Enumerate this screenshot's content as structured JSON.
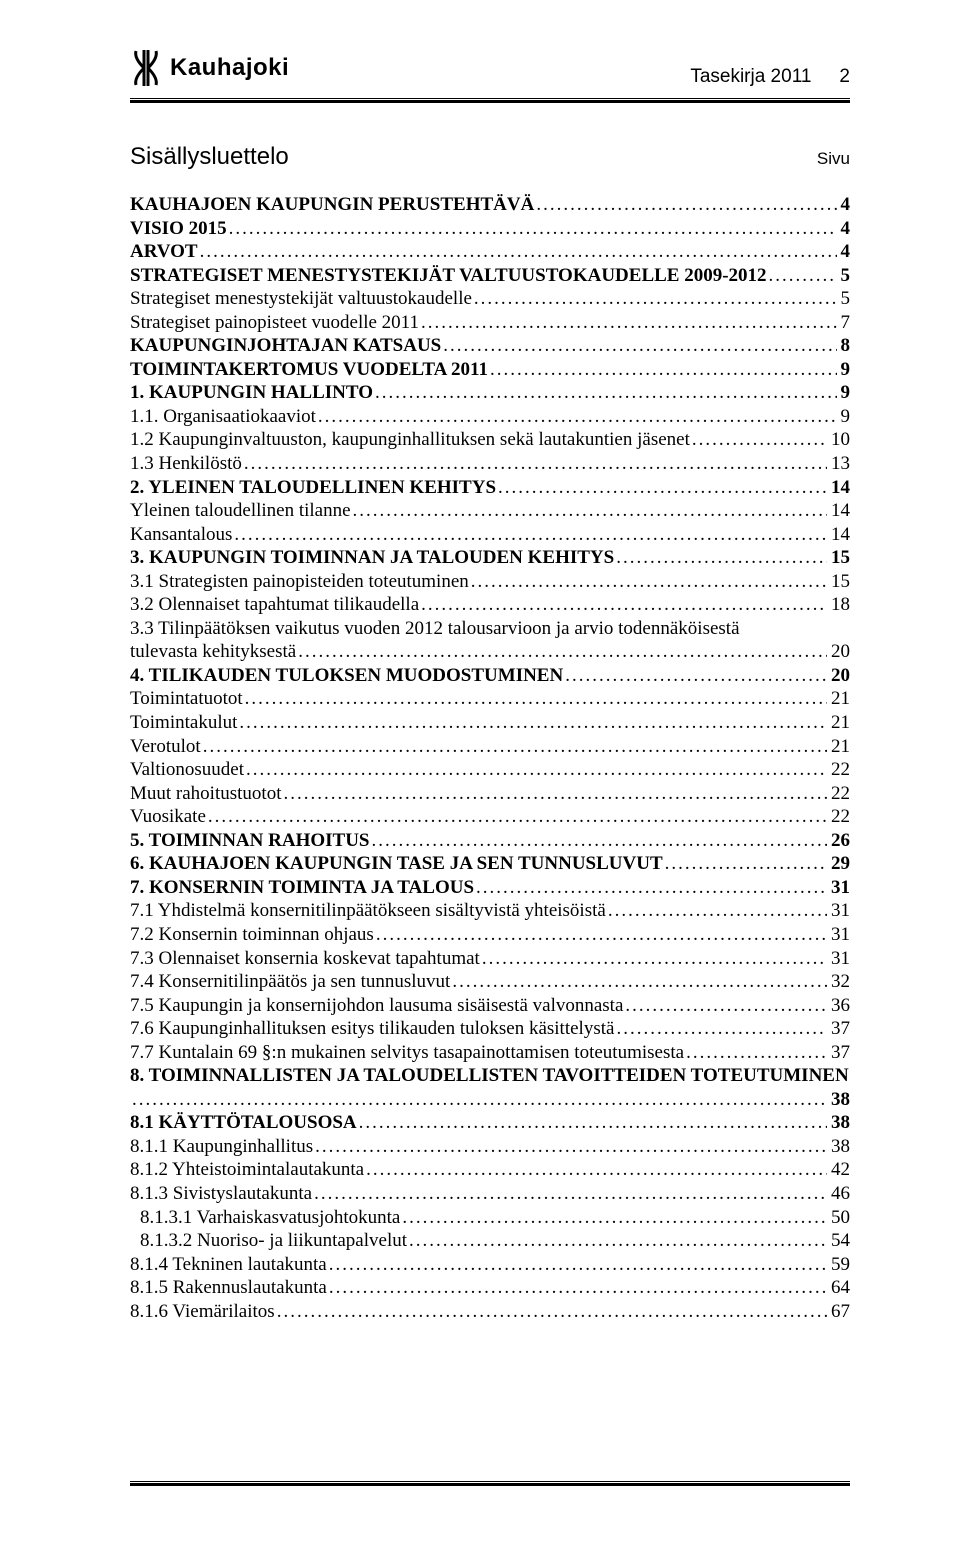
{
  "header": {
    "logo_text": "Kauhajoki",
    "doc_title": "Tasekirja 2011",
    "page_no": "2"
  },
  "toc": {
    "title": "Sisällysluettelo",
    "page_label": "Sivu",
    "entries": [
      {
        "label": "KAUHAJOEN KAUPUNGIN PERUSTEHTÄVÄ",
        "page": "4",
        "bold": true,
        "indent": 0
      },
      {
        "label": "VISIO 2015",
        "page": "4",
        "bold": true,
        "indent": 0
      },
      {
        "label": "ARVOT",
        "page": "4",
        "bold": true,
        "indent": 0
      },
      {
        "label": "STRATEGISET MENESTYSTEKIJÄT VALTUUSTOKAUDELLE 2009-2012",
        "page": "5",
        "bold": true,
        "indent": 0
      },
      {
        "label": "Strategiset menestystekijät valtuustokaudelle",
        "page": "5",
        "bold": false,
        "indent": 0
      },
      {
        "label": "Strategiset painopisteet vuodelle 2011",
        "page": "7",
        "bold": false,
        "indent": 0
      },
      {
        "label": "KAUPUNGINJOHTAJAN KATSAUS",
        "page": "8",
        "bold": true,
        "indent": 0
      },
      {
        "label": "TOIMINTAKERTOMUS VUODELTA 2011",
        "page": "9",
        "bold": true,
        "indent": 0
      },
      {
        "label": "1. KAUPUNGIN HALLINTO",
        "page": "9",
        "bold": true,
        "indent": 0
      },
      {
        "label": "1.1. Organisaatiokaaviot",
        "page": "9",
        "bold": false,
        "indent": 0
      },
      {
        "label": "1.2 Kaupunginvaltuuston, kaupunginhallituksen sekä lautakuntien jäsenet",
        "page": "10",
        "bold": false,
        "indent": 0
      },
      {
        "label": "1.3 Henkilöstö",
        "page": "13",
        "bold": false,
        "indent": 0
      },
      {
        "label": "2. YLEINEN TALOUDELLINEN KEHITYS",
        "page": "14",
        "bold": true,
        "indent": 0
      },
      {
        "label": "Yleinen taloudellinen tilanne",
        "page": "14",
        "bold": false,
        "indent": 0
      },
      {
        "label": "Kansantalous",
        "page": "14",
        "bold": false,
        "indent": 0
      },
      {
        "label": "3. KAUPUNGIN TOIMINNAN JA TALOUDEN KEHITYS",
        "page": "15",
        "bold": true,
        "indent": 0
      },
      {
        "label": "3.1 Strategisten painopisteiden toteutuminen",
        "page": "15",
        "bold": false,
        "indent": 0
      },
      {
        "label": "3.2 Olennaiset tapahtumat tilikaudella",
        "page": "18",
        "bold": false,
        "indent": 0
      },
      {
        "label": "3.3 Tilinpäätöksen vaikutus vuoden 2012 talousarvioon ja arvio todennäköisestä tulevasta kehityksestä",
        "page": "20",
        "bold": false,
        "indent": 0,
        "wrap": true
      },
      {
        "label": "4. TILIKAUDEN TULOKSEN MUODOSTUMINEN",
        "page": "20",
        "bold": true,
        "indent": 0
      },
      {
        "label": "Toimintatuotot",
        "page": "21",
        "bold": false,
        "indent": 0
      },
      {
        "label": "Toimintakulut",
        "page": "21",
        "bold": false,
        "indent": 0
      },
      {
        "label": "Verotulot",
        "page": "21",
        "bold": false,
        "indent": 0
      },
      {
        "label": "Valtionosuudet",
        "page": "22",
        "bold": false,
        "indent": 0
      },
      {
        "label": "Muut rahoitustuotot",
        "page": "22",
        "bold": false,
        "indent": 0
      },
      {
        "label": "Vuosikate",
        "page": "22",
        "bold": false,
        "indent": 0
      },
      {
        "label": "5. TOIMINNAN RAHOITUS",
        "page": "26",
        "bold": true,
        "indent": 0
      },
      {
        "label": "6. KAUHAJOEN KAUPUNGIN TASE JA SEN TUNNUSLUVUT",
        "page": "29",
        "bold": true,
        "indent": 0
      },
      {
        "label": "7. KONSERNIN TOIMINTA JA TALOUS",
        "page": "31",
        "bold": true,
        "indent": 0
      },
      {
        "label": "7.1 Yhdistelmä konsernitilinpäätökseen sisältyvistä yhteisöistä",
        "page": "31",
        "bold": false,
        "indent": 0
      },
      {
        "label": "7.2 Konsernin toiminnan ohjaus",
        "page": "31",
        "bold": false,
        "indent": 0
      },
      {
        "label": "7.3 Olennaiset konsernia koskevat tapahtumat",
        "page": "31",
        "bold": false,
        "indent": 0
      },
      {
        "label": "7.4 Konsernitilinpäätös ja sen tunnusluvut",
        "page": "32",
        "bold": false,
        "indent": 0
      },
      {
        "label": "7.5 Kaupungin ja konsernijohdon lausuma sisäisestä valvonnasta",
        "page": "36",
        "bold": false,
        "indent": 0
      },
      {
        "label": "7.6 Kaupunginhallituksen esitys tilikauden tuloksen käsittelystä",
        "page": "37",
        "bold": false,
        "indent": 0
      },
      {
        "label": "7.7 Kuntalain 69 §:n mukainen selvitys tasapainottamisen toteutumisesta",
        "page": "37",
        "bold": false,
        "indent": 0
      },
      {
        "label": "8. TOIMINNALLISTEN JA TALOUDELLISTEN TAVOITTEIDEN TOTEUTUMINEN",
        "page": "38",
        "bold": true,
        "indent": 0,
        "wrap": true
      },
      {
        "label": "8.1 KÄYTTÖTALOUSOSA",
        "page": "38",
        "bold": true,
        "indent": 0
      },
      {
        "label": "8.1.1 Kaupunginhallitus",
        "page": "38",
        "bold": false,
        "indent": 0
      },
      {
        "label": "8.1.2 Yhteistoimintalautakunta",
        "page": "42",
        "bold": false,
        "indent": 0
      },
      {
        "label": "8.1.3 Sivistyslautakunta",
        "page": "46",
        "bold": false,
        "indent": 0
      },
      {
        "label": "8.1.3.1 Varhaiskasvatusjohtokunta",
        "page": "50",
        "bold": false,
        "indent": 1
      },
      {
        "label": "8.1.3.2 Nuoriso- ja liikuntapalvelut",
        "page": "54",
        "bold": false,
        "indent": 1
      },
      {
        "label": "8.1.4 Tekninen lautakunta",
        "page": "59",
        "bold": false,
        "indent": 0
      },
      {
        "label": "8.1.5 Rakennuslautakunta",
        "page": "64",
        "bold": false,
        "indent": 0
      },
      {
        "label": "8.1.6 Viemärilaitos",
        "page": "67",
        "bold": false,
        "indent": 0
      }
    ]
  },
  "colors": {
    "text": "#000000",
    "background": "#ffffff"
  }
}
